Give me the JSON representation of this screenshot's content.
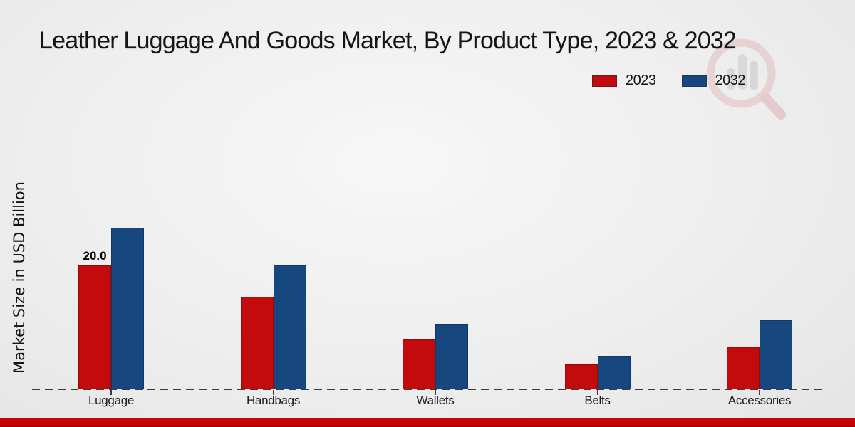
{
  "title": "Leather Luggage And Goods Market, By Product Type, 2023 & 2032",
  "ylabel": "Market Size in USD Billion",
  "legend": [
    {
      "label": "2023",
      "color": "#c30b0e"
    },
    {
      "label": "2032",
      "color": "#17477f"
    }
  ],
  "watermark_icon": "magnifier-bar-chart-logo",
  "colors": {
    "series_2023": "#c30b0e",
    "series_2032": "#17477f",
    "footer_top": "#c50408",
    "footer_bottom": "#900003",
    "baseline": "#3c3c3c"
  },
  "chart_data": {
    "type": "bar",
    "categories": [
      "Luggage",
      "Handbags",
      "Wallets",
      "Belts",
      "Accessories"
    ],
    "series": [
      {
        "name": "2023",
        "color": "#c30b0e",
        "values": [
          20.0,
          15.0,
          8.0,
          4.0,
          6.8
        ]
      },
      {
        "name": "2032",
        "color": "#17477f",
        "values": [
          26.1,
          20.0,
          10.6,
          5.4,
          11.1
        ]
      }
    ],
    "bar_labels": [
      {
        "series": "2023",
        "category": "Luggage",
        "text": "20.0"
      }
    ],
    "title": "Leather Luggage And Goods Market, By Product Type, 2023 & 2032",
    "xlabel": "",
    "ylabel": "Market Size in USD Billion",
    "ylim": [
      0,
      30
    ],
    "grid": false,
    "y_axis_ticks_visible": false,
    "baseline_style": "dashed",
    "legend_position": "top-right"
  }
}
